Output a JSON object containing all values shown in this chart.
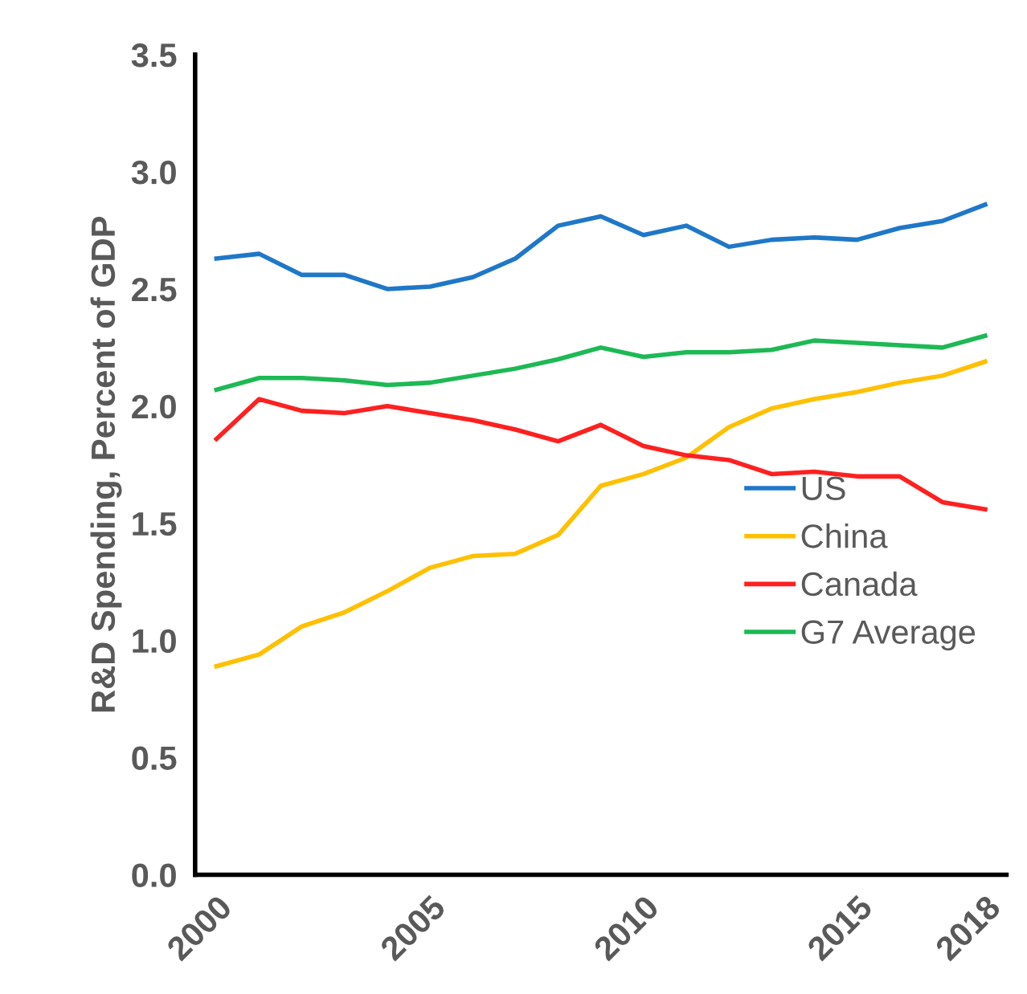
{
  "chart_data": {
    "type": "line",
    "ylabel": "R&D Spending, Percent of GDP",
    "x": [
      2000,
      2001,
      2002,
      2003,
      2004,
      2005,
      2006,
      2007,
      2008,
      2009,
      2010,
      2011,
      2012,
      2013,
      2014,
      2015,
      2016,
      2017,
      2018
    ],
    "series": [
      {
        "name": "US",
        "color": "#1f77c8",
        "values": [
          2.63,
          2.65,
          2.56,
          2.56,
          2.5,
          2.51,
          2.55,
          2.63,
          2.77,
          2.81,
          2.73,
          2.77,
          2.68,
          2.71,
          2.72,
          2.71,
          2.76,
          2.79,
          2.86
        ]
      },
      {
        "name": "China",
        "color": "#ffc000",
        "values": [
          0.89,
          0.94,
          1.06,
          1.12,
          1.21,
          1.31,
          1.36,
          1.37,
          1.45,
          1.66,
          1.71,
          1.78,
          1.91,
          1.99,
          2.03,
          2.06,
          2.1,
          2.13,
          2.19
        ]
      },
      {
        "name": "Canada",
        "color": "#ff2020",
        "values": [
          1.86,
          2.03,
          1.98,
          1.97,
          2.0,
          1.97,
          1.94,
          1.9,
          1.85,
          1.92,
          1.83,
          1.79,
          1.77,
          1.71,
          1.72,
          1.7,
          1.7,
          1.59,
          1.56
        ]
      },
      {
        "name": "G7 Average",
        "color": "#1db954",
        "values": [
          2.07,
          2.12,
          2.12,
          2.11,
          2.09,
          2.1,
          2.13,
          2.16,
          2.2,
          2.25,
          2.21,
          2.23,
          2.23,
          2.24,
          2.28,
          2.27,
          2.26,
          2.25,
          2.3
        ]
      }
    ],
    "xlim": [
      1999.5,
      2018.5
    ],
    "xticks": [
      2000,
      2005,
      2010,
      2015,
      2018
    ],
    "ylim": [
      0,
      3.5
    ],
    "yticks": [
      {
        "value": 0,
        "label": "0.0"
      },
      {
        "value": 0.5,
        "label": "0.5"
      },
      {
        "value": 1,
        "label": "1.0"
      },
      {
        "value": 1.5,
        "label": "1.5"
      },
      {
        "value": 2,
        "label": "2.0"
      },
      {
        "value": 2.5,
        "label": "2.5"
      },
      {
        "value": 3,
        "label": "3.0"
      },
      {
        "value": 3.5,
        "label": "3.5"
      }
    ],
    "grid": false,
    "legend": "right",
    "marker": "none",
    "line_style": "solid"
  }
}
